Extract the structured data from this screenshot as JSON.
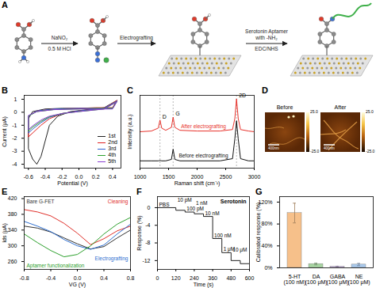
{
  "panel_a": {
    "label": "A",
    "arrows": [
      {
        "above": [
          "NaNO₂"
        ],
        "below": [
          "0.5 M HCl"
        ]
      },
      {
        "above": [
          "Electrografting"
        ]
      },
      {
        "above": [
          "Serotonin Aptamer",
          "with -NH₂"
        ],
        "below": [
          "EDC/NHS"
        ]
      }
    ]
  },
  "panel_d": {
    "label": "D",
    "images": [
      {
        "title": "Before"
      },
      {
        "title": "After"
      }
    ],
    "scale_bar": "400nm",
    "colorbar": {
      "range": [
        -25,
        25
      ],
      "ticks": [
        {
          "value": 25,
          "label": "25.0"
        },
        {
          "value": -25,
          "label": "-25.0"
        }
      ]
    }
  },
  "chart_data": [
    {
      "label": "B",
      "type": "line",
      "x_label": "Potential (V)",
      "y_label": "Current (μA)",
      "xlim": [
        -0.65,
        0.5
      ],
      "xticks": [
        -0.6,
        -0.4,
        -0.2,
        {
          "value": 0,
          "label": "0.0"
        },
        0.2,
        0.4
      ],
      "ylim": [
        -4.3,
        1.3
      ],
      "yticks": [
        -4,
        -3,
        -2,
        -1,
        0,
        1
      ],
      "legend": "lower right",
      "series": [
        {
          "name": "1st",
          "color": "#222222",
          "x": [
            0.45,
            0.3,
            0.1,
            -0.1,
            -0.25,
            -0.35,
            -0.4,
            -0.45,
            -0.5,
            -0.55,
            -0.6,
            -0.6,
            -0.55,
            -0.4,
            -0.2,
            0,
            0.2,
            0.4,
            0.45
          ],
          "values": [
            0.9,
            0.35,
            0.2,
            0.05,
            -0.3,
            -1.0,
            -2.2,
            -3.4,
            -4.0,
            -3.6,
            -2.8,
            -0.5,
            0.05,
            0.25,
            0.3,
            0.3,
            0.3,
            0.3,
            0.9
          ]
        },
        {
          "name": "2nd",
          "color": "#e02020",
          "x": [
            0.45,
            0.3,
            0,
            -0.2,
            -0.35,
            -0.45,
            -0.55,
            -0.6,
            -0.6,
            -0.5,
            -0.3,
            0,
            0.2,
            0.4,
            0.45
          ],
          "values": [
            0.9,
            0.3,
            0.1,
            -0.1,
            -0.5,
            -1.0,
            -1.6,
            -1.9,
            -0.3,
            0.1,
            0.25,
            0.3,
            0.35,
            0.35,
            0.9
          ]
        },
        {
          "name": "3rd",
          "color": "#2f5fd0",
          "x": [
            0.45,
            0.3,
            0,
            -0.2,
            -0.35,
            -0.45,
            -0.55,
            -0.6,
            -0.6,
            -0.5,
            -0.3,
            0,
            0.2,
            0.4,
            0.45
          ],
          "values": [
            0.85,
            0.3,
            0.1,
            -0.1,
            -0.4,
            -0.8,
            -1.3,
            -1.6,
            -0.3,
            0.1,
            0.25,
            0.3,
            0.3,
            0.3,
            0.85
          ]
        },
        {
          "name": "4th",
          "color": "#2ca02c",
          "x": [
            0.45,
            0.3,
            0,
            -0.2,
            -0.35,
            -0.45,
            -0.55,
            -0.6,
            -0.6,
            -0.5,
            -0.3,
            0,
            0.2,
            0.4,
            0.45
          ],
          "values": [
            0.8,
            0.25,
            0.05,
            -0.1,
            -0.35,
            -0.7,
            -1.15,
            -1.45,
            -0.3,
            0.05,
            0.2,
            0.25,
            0.3,
            0.3,
            0.8
          ]
        },
        {
          "name": "5th",
          "color": "#8a3fd0",
          "x": [
            0.45,
            0.3,
            0,
            -0.2,
            -0.35,
            -0.45,
            -0.55,
            -0.6,
            -0.6,
            -0.5,
            -0.3,
            0,
            0.2,
            0.4,
            0.45
          ],
          "values": [
            0.8,
            0.25,
            0.05,
            -0.1,
            -0.3,
            -0.6,
            -1.05,
            -1.35,
            -0.25,
            0.05,
            0.2,
            0.25,
            0.25,
            0.25,
            0.8
          ]
        }
      ]
    },
    {
      "label": "C",
      "type": "line",
      "x_label": "Raman shift (cm⁻¹)",
      "y_label": "Intensity (a.u.)",
      "xlim": [
        1000,
        3000
      ],
      "xticks": [
        1000,
        1500,
        2000,
        2500,
        3000
      ],
      "ylim": [
        0,
        10
      ],
      "tick_labels": "x",
      "x": [
        1000,
        1200,
        1320,
        1350,
        1380,
        1450,
        1550,
        1580,
        1610,
        1700,
        2000,
        2400,
        2620,
        2660,
        2690,
        2720,
        2760,
        2900,
        3000
      ],
      "series": [
        {
          "name": "After electrografting",
          "color": "#e8322b",
          "values": [
            5.0,
            5.1,
            5.5,
            6.6,
            5.5,
            5.2,
            5.6,
            7.0,
            5.6,
            5.2,
            5.1,
            5.1,
            5.3,
            6.8,
            9.5,
            6.8,
            5.3,
            5.1,
            5.0
          ]
        },
        {
          "name": "Before electrografting",
          "color": "#111111",
          "values": [
            1.0,
            1.0,
            1.0,
            1.05,
            1.0,
            1.0,
            1.2,
            2.6,
            1.2,
            1.0,
            1.0,
            1.0,
            1.3,
            4.0,
            6.5,
            4.0,
            1.3,
            1.0,
            1.0
          ]
        }
      ],
      "peaks": [
        {
          "name": "D",
          "x": 1350
        },
        {
          "name": "G",
          "x": 1580
        },
        {
          "name": "2D",
          "x": 2690
        }
      ]
    },
    {
      "label": "E",
      "type": "line",
      "x_label": "VG (V)",
      "y_label": "Ids (μA)",
      "xlim": [
        -0.8,
        0.8
      ],
      "xticks": [
        -0.8,
        -0.4,
        {
          "value": 0,
          "label": "0.0"
        },
        0.4,
        0.8
      ],
      "ylim": [
        240,
        425
      ],
      "yticks": [
        260,
        300,
        340,
        380,
        420
      ],
      "x": [
        -0.8,
        -0.6,
        -0.4,
        -0.2,
        0,
        0.2,
        0.4,
        0.6,
        0.8
      ],
      "series": [
        {
          "name": "Bare G-FET",
          "color": "#333333",
          "values": [
            350,
            345,
            335,
            320,
            305,
            292,
            298,
            320,
            340
          ]
        },
        {
          "name": "Cleaning",
          "color": "#e0302a",
          "values": [
            392,
            386,
            376,
            357,
            332,
            303,
            318,
            338,
            350
          ]
        },
        {
          "name": "Electrografting",
          "color": "#2f6fd0",
          "values": [
            362,
            350,
            336,
            316,
            300,
            291,
            302,
            330,
            355
          ]
        },
        {
          "name": "Aptamer functionalization",
          "color": "#2ca02c",
          "values": [
            330,
            308,
            288,
            272,
            278,
            300,
            330,
            355,
            372
          ]
        }
      ]
    },
    {
      "label": "F",
      "type": "line",
      "title": "Serotonin",
      "x_label": "Time (s)",
      "y_label": "Response (%)",
      "xlim": [
        0,
        600
      ],
      "xticks": [
        0,
        120,
        240,
        360,
        480,
        600
      ],
      "ylim": [
        -14,
        2.5
      ],
      "yticks": [
        0,
        -4,
        -8,
        -12
      ],
      "line_style": "step",
      "color": "#222222",
      "x": [
        0,
        120,
        180,
        240,
        300,
        360,
        420,
        480,
        540,
        600
      ],
      "values": [
        0,
        -0.6,
        -1.0,
        -1.4,
        -2.0,
        -7.0,
        -10.2,
        -12.0,
        -12.7,
        -13.0
      ],
      "point_labels": [
        "PBS",
        "10 pM",
        "100 pM",
        "1 nM",
        "10 nM",
        "100 nM",
        "1 μM",
        "10 μM",
        null,
        null
      ]
    },
    {
      "label": "G",
      "type": "bar",
      "y_label": "Calibrated response (%)",
      "categories": [
        "5-HT",
        "DA",
        "GABA",
        "NE"
      ],
      "concentrations": [
        "(100 nM)",
        "(100 μM)",
        "(100 μM)",
        "(100 μM)"
      ],
      "values": [
        100,
        7,
        2,
        6
      ],
      "errors": [
        18,
        1.5,
        1,
        2
      ],
      "colors": [
        "#f6c08a",
        "#a8d5a2",
        "#c9b3e0",
        "#a9c9ec"
      ],
      "ylim": [
        0,
        130
      ],
      "yticks": [
        {
          "value": 0,
          "label": "0%"
        },
        {
          "value": 40,
          "label": "40%"
        },
        {
          "value": 80,
          "label": "80%"
        },
        {
          "value": 120,
          "label": "120%"
        }
      ]
    }
  ]
}
